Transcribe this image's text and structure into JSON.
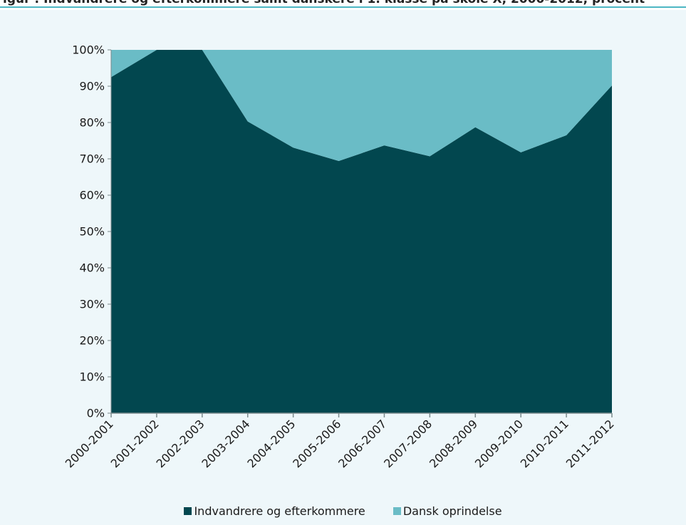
{
  "header": {
    "title": "igur : Indvandrere og efterkommere samt danskere i 1. klasse på skole X, 2000-2012, procent"
  },
  "colors": {
    "rule": "#4db7c4",
    "background": "#eef7fa",
    "series_dark": "#02474f",
    "series_light": "#6abcc6",
    "axis": "#7a8a8c"
  },
  "chart_data": {
    "type": "area",
    "stacked": true,
    "title": "",
    "xlabel": "",
    "ylabel": "",
    "ylim": [
      0,
      100
    ],
    "yticks": [
      "0%",
      "10%",
      "20%",
      "30%",
      "40%",
      "50%",
      "60%",
      "70%",
      "80%",
      "90%",
      "100%"
    ],
    "categories": [
      "2000-2001",
      "2001-2002",
      "2002-2003",
      "2003-2004",
      "2004-2005",
      "2005-2006",
      "2006-2007",
      "2007-2008",
      "2008-2009",
      "2009-2010",
      "2010-2011",
      "2011-2012"
    ],
    "series": [
      {
        "name": "Indvandrere og efterkommere",
        "color": "#02474f",
        "values": [
          92.5,
          100,
          100,
          80.3,
          73.1,
          69.4,
          73.7,
          70.7,
          78.7,
          71.8,
          76.5,
          90.2
        ]
      },
      {
        "name": "Dansk oprindelse",
        "color": "#6abcc6",
        "values": [
          7.5,
          0,
          0,
          19.7,
          26.9,
          30.6,
          26.3,
          29.3,
          21.3,
          28.2,
          23.5,
          9.8
        ]
      }
    ],
    "grid": false,
    "legend_position": "bottom"
  }
}
